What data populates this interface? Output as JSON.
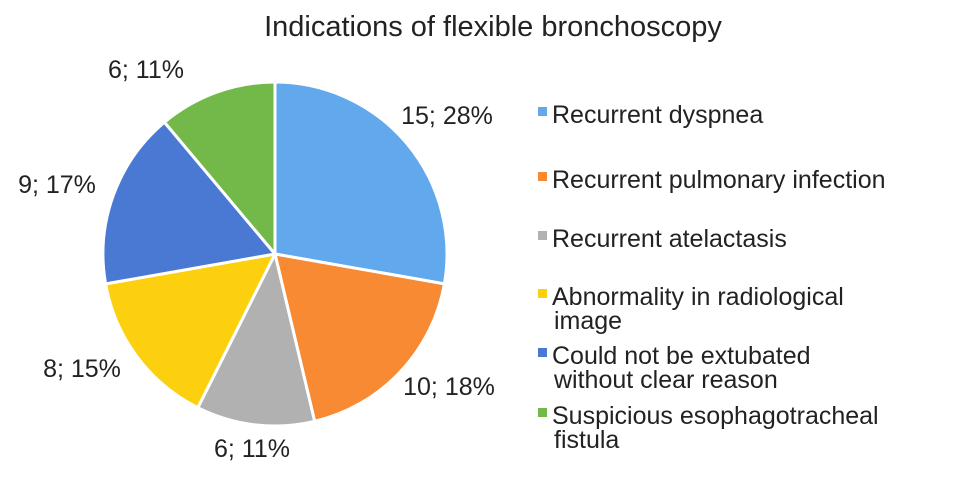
{
  "chart_data": {
    "type": "pie",
    "title": "Indications of flexible bronchoscopy",
    "legend_position": "right",
    "slices": [
      {
        "name": "Recurrent dyspnea",
        "legend_lines": [
          "Recurrent dyspnea"
        ],
        "value": 15,
        "percent": 28,
        "label": "15; 28%",
        "color": "#62a8ec"
      },
      {
        "name": "Recurrent pulmonary infection",
        "legend_lines": [
          "Recurrent pulmonary infection"
        ],
        "value": 10,
        "percent": 18,
        "label": "10; 18%",
        "color": "#f78a32"
      },
      {
        "name": "Recurrent atelactasis",
        "legend_lines": [
          "Recurrent atelactasis"
        ],
        "value": 6,
        "percent": 11,
        "label": "6; 11%",
        "color": "#b1b1b1"
      },
      {
        "name": "Abnormality in radiological image",
        "legend_lines": [
          "Abnormality in radiological",
          "image"
        ],
        "value": 8,
        "percent": 15,
        "label": "8; 15%",
        "color": "#fdd00f"
      },
      {
        "name": "Could not be extubated without clear reason",
        "legend_lines": [
          "Could not be extubated",
          "without clear reason"
        ],
        "value": 9,
        "percent": 17,
        "label": "9; 17%",
        "color": "#4a79d4"
      },
      {
        "name": "Suspicious esophagotracheal fistula",
        "legend_lines": [
          "Suspicious esophagotracheal",
          "fistula"
        ],
        "value": 6,
        "percent": 11,
        "label": "6; 11%",
        "color": "#72b94a"
      }
    ]
  }
}
